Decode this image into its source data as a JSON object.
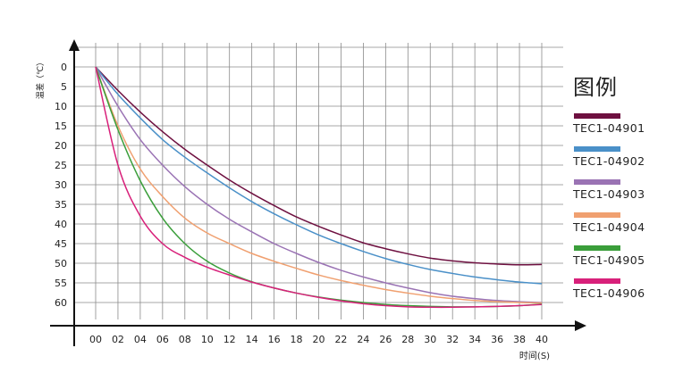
{
  "chart_data": {
    "type": "line",
    "xlabel": "时间(S)",
    "ylabel": "温差（℃）",
    "x_ticks": [
      "00",
      "02",
      "04",
      "06",
      "08",
      "10",
      "12",
      "14",
      "16",
      "18",
      "20",
      "22",
      "24",
      "26",
      "28",
      "30",
      "32",
      "34",
      "36",
      "38",
      "40"
    ],
    "y_ticks": [
      "0",
      "5",
      "10",
      "15",
      "20",
      "25",
      "30",
      "35",
      "40",
      "45",
      "50",
      "55",
      "60"
    ],
    "xlim": [
      0,
      40
    ],
    "ylim": [
      0,
      60
    ],
    "y_inverted": true,
    "grid": true,
    "legend_title": "图例",
    "legend_position": "right",
    "x": [
      0,
      2,
      4,
      6,
      8,
      10,
      12,
      14,
      16,
      18,
      20,
      22,
      24,
      26,
      28,
      30,
      32,
      34,
      36,
      38,
      40
    ],
    "series": [
      {
        "name": "TEC1-04901",
        "color": "#6e1040",
        "values": [
          0,
          6,
          11.5,
          16.5,
          21,
          25,
          28.8,
          32.2,
          35.3,
          38.2,
          40.6,
          42.8,
          44.8,
          46.3,
          47.6,
          48.7,
          49.4,
          49.9,
          50.2,
          50.4,
          50.3
        ]
      },
      {
        "name": "TEC1-04902",
        "color": "#4a90c8",
        "values": [
          0,
          7,
          13,
          18.5,
          23,
          27,
          30.8,
          34.3,
          37.4,
          40.2,
          42.8,
          45,
          47,
          48.8,
          50.3,
          51.6,
          52.6,
          53.5,
          54.2,
          54.8,
          55.2
        ]
      },
      {
        "name": "TEC1-04903",
        "color": "#9a73b4",
        "values": [
          0,
          10,
          18.5,
          25,
          30.5,
          35,
          38.8,
          42,
          45,
          47.5,
          49.8,
          51.8,
          53.5,
          55,
          56.3,
          57.5,
          58.4,
          59,
          59.5,
          59.8,
          60
        ]
      },
      {
        "name": "TEC1-04904",
        "color": "#f0a070",
        "values": [
          0,
          15,
          26,
          33,
          38.5,
          42.3,
          45,
          47.5,
          49.5,
          51.3,
          53,
          54.4,
          55.6,
          56.7,
          57.6,
          58.4,
          59,
          59.5,
          59.8,
          60,
          60.1
        ]
      },
      {
        "name": "TEC1-04905",
        "color": "#3a9e3a",
        "values": [
          0,
          16,
          29,
          38.5,
          45,
          49.5,
          52.5,
          54.7,
          56.3,
          57.6,
          58.6,
          59.4,
          60,
          60.5,
          60.8,
          61,
          61.1,
          61.1,
          61,
          60.8,
          60.4
        ]
      },
      {
        "name": "TEC1-04906",
        "color": "#d8207a",
        "values": [
          0,
          25,
          38,
          45,
          48.5,
          51,
          53,
          54.8,
          56.3,
          57.6,
          58.7,
          59.6,
          60.3,
          60.8,
          61.1,
          61.2,
          61.2,
          61.1,
          61,
          60.8,
          60.5
        ]
      }
    ]
  }
}
